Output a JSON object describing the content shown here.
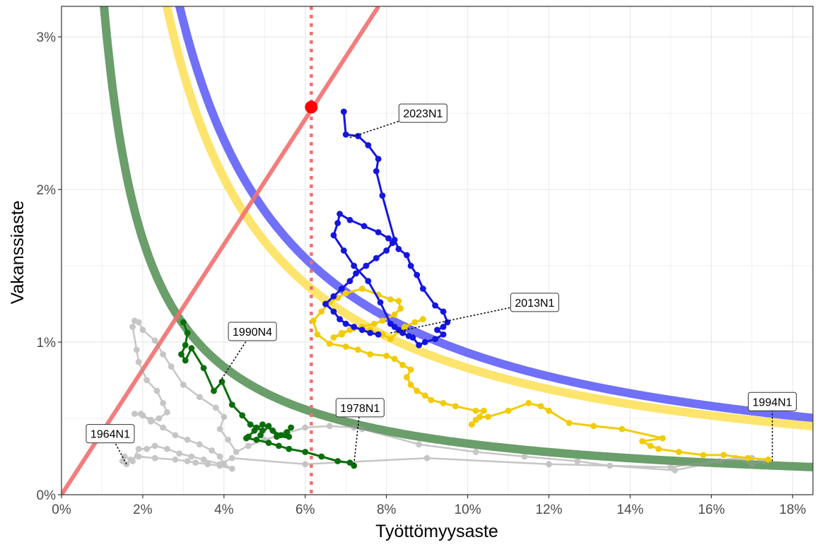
{
  "colors": {
    "blue": "#1515e0",
    "blue_curve": "#7070f8",
    "gold": "#f2cb05",
    "gold_curve": "#fde46c",
    "green": "#0a6e0a",
    "green_curve": "#6a9e6a",
    "grey": "#999999",
    "red": "#f27070",
    "point": "#ff0000",
    "grid": "#ebebeb"
  },
  "chart_data": {
    "type": "line",
    "title": "",
    "xlabel": "Työttömyysaste",
    "ylabel": "Vakanssiaste",
    "xlim": [
      0,
      18.5
    ],
    "ylim": [
      0,
      3.2
    ],
    "x_ticks": [
      0,
      2,
      4,
      6,
      8,
      10,
      12,
      14,
      16,
      18
    ],
    "x_tick_labels": [
      "0%",
      "2%",
      "4%",
      "6%",
      "8%",
      "10%",
      "12%",
      "14%",
      "16%",
      "18%"
    ],
    "y_ticks": [
      0,
      1,
      2,
      3
    ],
    "y_tick_labels": [
      "0%",
      "1%",
      "2%",
      "3%"
    ],
    "grid": true,
    "legend": "none",
    "reference_line": {
      "slope": 0.41,
      "description": "diagonal"
    },
    "vertical_line": {
      "x": 6.15
    },
    "highlight_point": {
      "x": 6.15,
      "y": 2.54
    },
    "curves": [
      {
        "k": 3.35,
        "color_key": "green_curve"
      },
      {
        "k": 9.3,
        "color_key": "blue_curve"
      },
      {
        "k": 8.3,
        "color_key": "gold_curve"
      }
    ],
    "series": [
      {
        "color_key": "grey",
        "x": [
          1.6,
          1.5,
          1.55,
          1.7,
          1.9,
          2.3,
          2.8,
          3.1,
          3.3,
          3.6,
          3.9,
          4.2,
          4.0,
          3.9,
          3.7,
          3.4,
          3.1,
          2.8,
          2.5,
          2.2,
          1.95,
          1.8,
          2.0,
          2.2,
          2.4,
          2.6,
          2.5,
          2.35,
          2.1,
          1.9,
          1.85,
          1.75,
          1.8,
          1.9,
          2.0,
          2.3,
          2.5,
          2.7,
          3.0,
          3.4,
          3.8,
          4.0,
          3.9,
          4.1,
          4.3,
          4.6,
          5.0,
          5.5,
          6.0,
          6.6,
          7.2,
          7.4,
          8.8,
          10.2,
          11.4,
          12.7,
          13.5,
          15.1,
          16.2,
          17.0,
          17.3,
          17.0,
          16.6,
          15.0,
          12.0,
          9.0,
          6.0,
          4.2,
          3.9,
          3.5,
          3.2,
          2.9,
          2.6,
          2.3,
          2.1,
          1.9,
          1.75
        ],
        "y": [
          0.2,
          0.22,
          0.25,
          0.23,
          0.25,
          0.24,
          0.23,
          0.22,
          0.21,
          0.2,
          0.19,
          0.17,
          0.2,
          0.25,
          0.29,
          0.33,
          0.36,
          0.39,
          0.44,
          0.49,
          0.53,
          0.53,
          0.52,
          0.48,
          0.5,
          0.54,
          0.6,
          0.68,
          0.75,
          0.87,
          0.95,
          1.1,
          1.14,
          1.13,
          1.08,
          1.01,
          0.92,
          0.84,
          0.72,
          0.64,
          0.57,
          0.51,
          0.43,
          0.36,
          0.28,
          0.32,
          0.36,
          0.4,
          0.44,
          0.45,
          0.44,
          0.43,
          0.33,
          0.28,
          0.25,
          0.22,
          0.19,
          0.16,
          0.22,
          0.24,
          0.22,
          0.2,
          0.24,
          0.18,
          0.2,
          0.24,
          0.2,
          0.24,
          0.2,
          0.23,
          0.25,
          0.27,
          0.3,
          0.32,
          0.3,
          0.3,
          0.22
        ]
      },
      {
        "color_key": "green",
        "x": [
          3.0,
          3.1,
          3.05,
          2.95,
          3.05,
          3.2,
          3.5,
          3.75,
          3.95,
          4.2,
          4.45,
          4.65,
          4.8,
          4.95,
          4.9,
          5.1,
          5.3,
          5.55,
          5.65,
          5.5,
          5.6,
          5.4,
          5.2,
          4.95,
          4.75,
          4.6,
          4.55,
          4.8,
          5.1,
          5.35,
          5.6,
          6.0,
          6.4,
          6.8,
          7.1,
          7.2
        ],
        "y": [
          1.13,
          1.06,
          0.98,
          0.92,
          0.88,
          0.96,
          0.83,
          0.68,
          0.74,
          0.59,
          0.52,
          0.46,
          0.44,
          0.42,
          0.39,
          0.45,
          0.38,
          0.41,
          0.44,
          0.39,
          0.38,
          0.39,
          0.42,
          0.46,
          0.42,
          0.38,
          0.37,
          0.36,
          0.34,
          0.32,
          0.3,
          0.28,
          0.25,
          0.22,
          0.21,
          0.19
        ]
      },
      {
        "color_key": "gold",
        "x": [
          17.4,
          16.9,
          16.3,
          15.8,
          15.2,
          14.7,
          14.5,
          14.3,
          14.8,
          13.8,
          13.1,
          12.5,
          12.0,
          11.8,
          11.5,
          11.0,
          10.5,
          10.3,
          10.1,
          10.2,
          10.4,
          10.2,
          9.7,
          9.4,
          9.1,
          8.95,
          8.75,
          8.6,
          8.5,
          8.6,
          8.4,
          8.2,
          8.0,
          7.6,
          7.3,
          7.0,
          6.6,
          6.3,
          6.2,
          6.4,
          6.6,
          6.8,
          7.0,
          7.4,
          7.8,
          8.1,
          8.3,
          8.35,
          8.2,
          7.9,
          7.7,
          7.4,
          7.1,
          6.9,
          6.7,
          6.9,
          7.2,
          7.6,
          7.9,
          8.1,
          8.3,
          8.45,
          8.7,
          8.9
        ],
        "y": [
          0.23,
          0.24,
          0.26,
          0.26,
          0.28,
          0.3,
          0.32,
          0.35,
          0.37,
          0.43,
          0.45,
          0.47,
          0.55,
          0.58,
          0.6,
          0.55,
          0.51,
          0.51,
          0.46,
          0.49,
          0.55,
          0.55,
          0.58,
          0.6,
          0.62,
          0.65,
          0.68,
          0.72,
          0.77,
          0.82,
          0.85,
          0.89,
          0.91,
          0.92,
          0.95,
          0.97,
          0.99,
          1.05,
          1.14,
          1.2,
          1.26,
          1.29,
          1.32,
          1.35,
          1.31,
          1.28,
          1.27,
          1.22,
          1.18,
          1.14,
          1.12,
          1.1,
          1.08,
          1.05,
          1.03,
          1.06,
          1.09,
          1.08,
          1.05,
          1.02,
          1.07,
          1.1,
          1.13,
          1.15
        ]
      },
      {
        "color_key": "blue",
        "x": [
          6.95,
          7.0,
          7.3,
          7.55,
          7.8,
          7.75,
          7.9,
          8.2,
          8.3,
          8.5,
          8.6,
          8.75,
          8.9,
          9.2,
          9.4,
          9.5,
          9.4,
          9.25,
          9.4,
          9.2,
          8.95,
          8.8,
          8.65,
          8.55,
          8.4,
          8.3,
          8.2,
          8.1,
          7.85,
          7.55,
          7.2,
          6.95,
          6.7,
          6.8,
          6.85,
          7.1,
          7.45,
          7.8,
          8.05,
          8.15,
          8.0,
          7.75,
          7.5,
          7.25,
          7.1,
          6.9,
          6.7,
          6.5,
          6.7,
          6.85,
          7.0,
          7.2,
          7.4,
          7.6,
          7.8
        ],
        "y": [
          2.51,
          2.36,
          2.35,
          2.29,
          2.2,
          2.12,
          1.96,
          1.67,
          1.61,
          1.57,
          1.5,
          1.44,
          1.35,
          1.24,
          1.2,
          1.13,
          1.1,
          1.08,
          1.05,
          1.02,
          1.0,
          0.98,
          1.03,
          1.04,
          1.06,
          1.08,
          1.1,
          1.12,
          1.26,
          1.4,
          1.5,
          1.6,
          1.7,
          1.78,
          1.84,
          1.8,
          1.76,
          1.72,
          1.68,
          1.65,
          1.6,
          1.55,
          1.5,
          1.45,
          1.4,
          1.35,
          1.3,
          1.25,
          1.2,
          1.15,
          1.12,
          1.1,
          1.08,
          1.06,
          1.05
        ]
      }
    ],
    "annotations": [
      {
        "label": "2023N1",
        "x": 7.1,
        "y": 2.34,
        "label_x": 8.9,
        "label_y": 2.5
      },
      {
        "label": "2013N1",
        "x": 8.1,
        "y": 1.06,
        "label_x": 11.65,
        "label_y": 1.26
      },
      {
        "label": "1990N4",
        "x": 3.9,
        "y": 0.74,
        "label_x": 4.7,
        "label_y": 1.07
      },
      {
        "label": "1978N1",
        "x": 7.2,
        "y": 0.2,
        "label_x": 7.35,
        "label_y": 0.57
      },
      {
        "label": "1964N1",
        "x": 1.6,
        "y": 0.2,
        "label_x": 1.2,
        "label_y": 0.4
      },
      {
        "label": "1994N1",
        "x": 17.5,
        "y": 0.22,
        "label_x": 17.5,
        "label_y": 0.61
      }
    ]
  }
}
